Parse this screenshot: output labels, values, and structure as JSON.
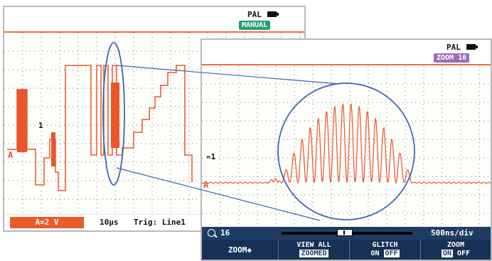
{
  "main_screen": {
    "mode": "PAL",
    "badge": "MANUAL",
    "marker_a": "A",
    "marker_cursor": "1",
    "range": "A=2 V",
    "timebase": "10µs",
    "trigger": "Trig: Line1"
  },
  "zoom_screen": {
    "mode": "PAL",
    "badge": "ZOOM 16",
    "marker_a": "A",
    "marker_cursor": "«1",
    "zoom_factor": "16",
    "timebase": "500ns/div",
    "softkeys": {
      "zoom": "ZOOM◆",
      "view_all_l1": "VIEW ALL",
      "view_all_l2": "ZOOMED",
      "glitch_l1": "GLITCH",
      "glitch_on": "ON",
      "glitch_off": "OFF",
      "zoom2_l1": "ZOOM",
      "zoom2_on": "ON",
      "zoom2_off": "OFF"
    }
  },
  "colors": {
    "trace": "#e8562a",
    "accent_orange": "#ee6f3a",
    "manual_badge": "#2c9a78",
    "zoom_badge": "#a06bb8",
    "softkey_bar": "#1e3c64",
    "lens": "#3f67b0"
  }
}
